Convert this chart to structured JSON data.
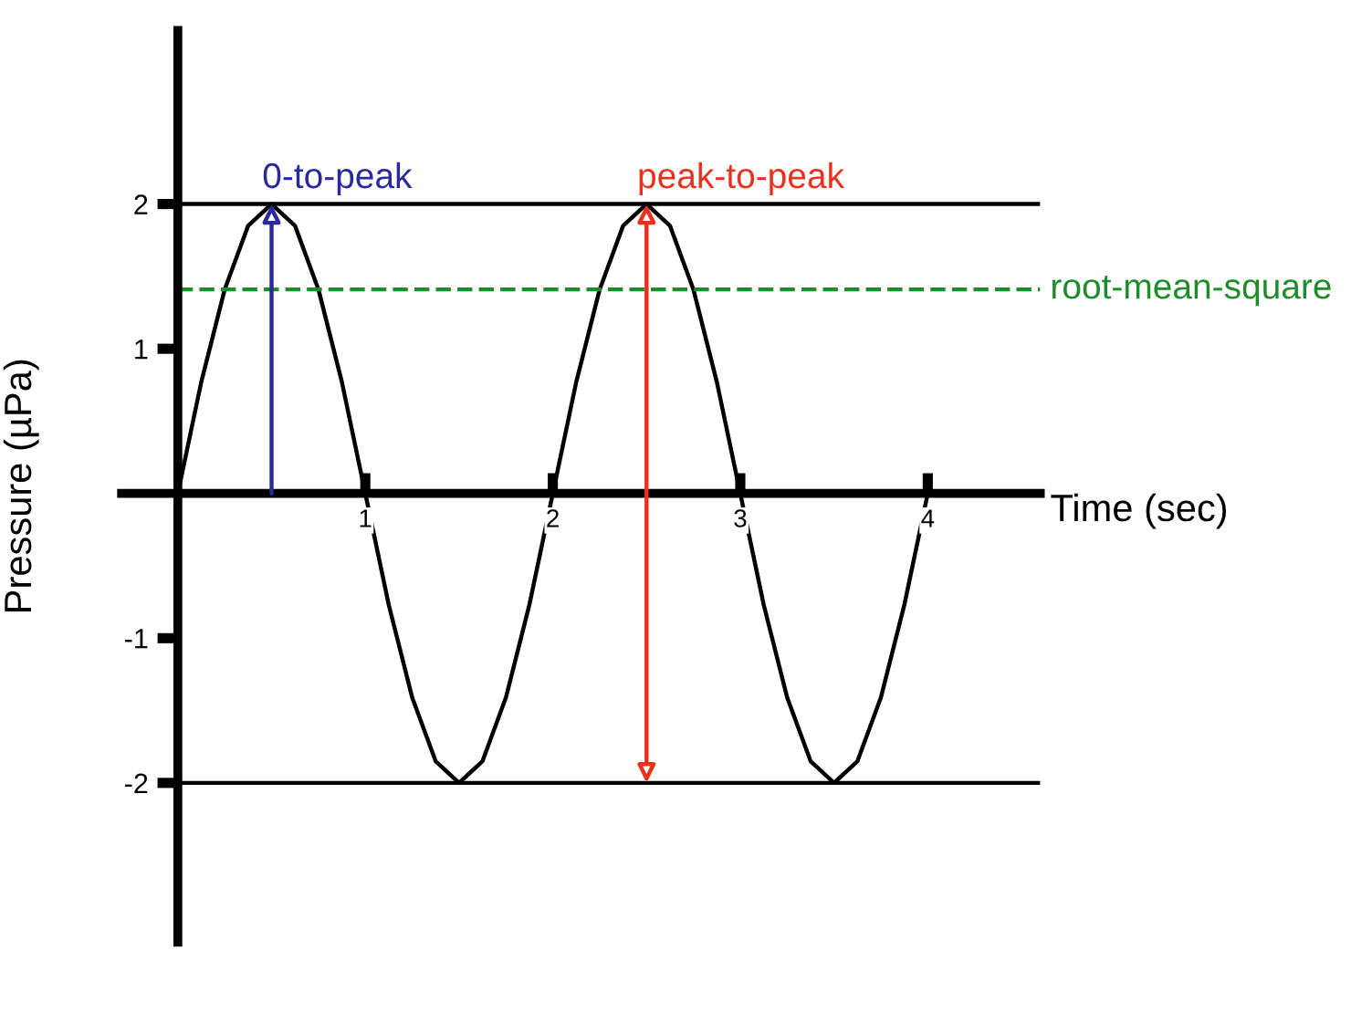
{
  "chart_data": {
    "type": "line",
    "xlabel": "Time (sec)",
    "ylabel": "Pressure (µPa)",
    "x": [
      0,
      0.125,
      0.25,
      0.375,
      0.5,
      0.625,
      0.75,
      0.875,
      1,
      1.125,
      1.25,
      1.375,
      1.5,
      1.625,
      1.75,
      1.875,
      2,
      2.125,
      2.25,
      2.375,
      2.5,
      2.625,
      2.75,
      2.875,
      3,
      3.125,
      3.25,
      3.375,
      3.5,
      3.625,
      3.75,
      3.875,
      4
    ],
    "series": [
      {
        "color": "#000000",
        "values": [
          0,
          0.77,
          1.41,
          1.85,
          2,
          1.85,
          1.41,
          0.77,
          0,
          -0.77,
          -1.41,
          -1.85,
          -2,
          -1.85,
          -1.41,
          -0.77,
          0,
          0.77,
          1.41,
          1.85,
          2,
          1.85,
          1.41,
          0.77,
          0,
          -0.77,
          -1.41,
          -1.85,
          -2,
          -1.85,
          -1.41,
          -0.77,
          0
        ]
      }
    ],
    "xlim": [
      -0.3,
      4.6
    ],
    "ylim": [
      -3.1,
      3.2
    ],
    "xticks": [
      1,
      2,
      3,
      4
    ],
    "yticks": [
      -2,
      -1,
      1,
      2
    ],
    "ref_lines": [
      {
        "axis": "y",
        "value": 2,
        "color": "#000000",
        "line_style": "solid"
      },
      {
        "axis": "y",
        "value": -2,
        "color": "#000000",
        "line_style": "solid"
      },
      {
        "axis": "y",
        "value": 1.41,
        "label": "root-mean-square",
        "color": "#1e8c2a",
        "line_style": "dashed"
      }
    ],
    "annotations": [
      {
        "text": "0-to-peak",
        "x": 0.5,
        "y": 2
      },
      {
        "text": "peak-to-peak",
        "x": 2.5,
        "y": 2
      }
    ],
    "grid": false,
    "legend": false,
    "marker": "none",
    "line_style": "solid"
  }
}
